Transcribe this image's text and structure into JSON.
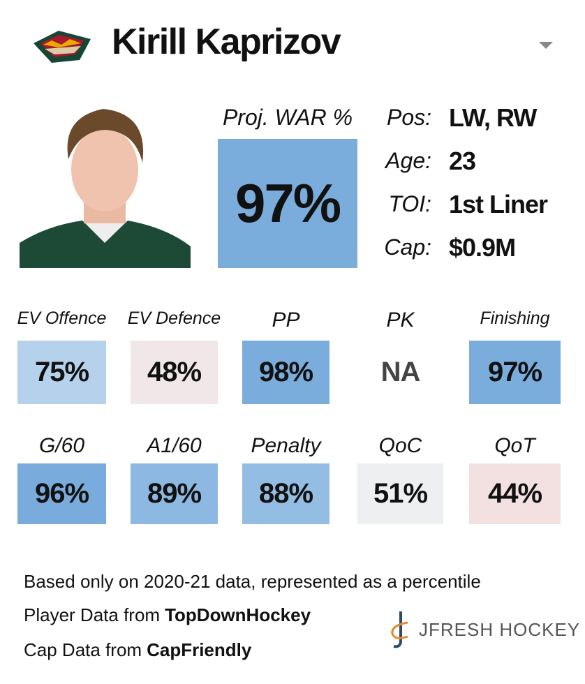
{
  "header": {
    "name": "Kirill Kaprizov"
  },
  "summary": {
    "label": "Proj. WAR %",
    "value": "97%",
    "color": "#7aaddc"
  },
  "info": [
    {
      "label": "Pos:",
      "value": "LW, RW"
    },
    {
      "label": "Age:",
      "value": "23"
    },
    {
      "label": "TOI:",
      "value": "1st Liner"
    },
    {
      "label": "Cap:",
      "value": "$0.9M"
    }
  ],
  "tiles": [
    {
      "label": "EV Offence",
      "value": "75%",
      "color": "#b6d1ec"
    },
    {
      "label": "EV Defence",
      "value": "48%",
      "color": "#f1e6e8"
    },
    {
      "label": "PP",
      "value": "98%",
      "color": "#7aaddc"
    },
    {
      "label": "PK",
      "value": "NA"
    },
    {
      "label": "Finishing",
      "value": "97%",
      "color": "#7aaddc"
    },
    {
      "label": "G/60",
      "value": "96%",
      "color": "#79acdd"
    },
    {
      "label": "A1/60",
      "value": "89%",
      "color": "#8db8e2"
    },
    {
      "label": "Penalty",
      "value": "88%",
      "color": "#94bde3"
    },
    {
      "label": "QoC",
      "value": "51%",
      "color": "#eeeff1"
    },
    {
      "label": "QoT",
      "value": "44%",
      "color": "#f3e1e2"
    }
  ],
  "footer": {
    "note": "Based only on 2020-21 data, represented as a percentile",
    "player_prefix": "Player Data from",
    "player_source": "TopDownHockey",
    "cap_prefix": "Cap Data from",
    "cap_source": "CapFriendly"
  },
  "brand": "JFRESH HOCKEY"
}
